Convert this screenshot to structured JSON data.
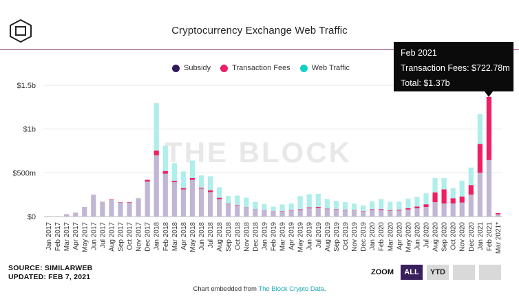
{
  "header": {
    "logo_icon": "the-block-cube-logo",
    "title": "Cryptocurrency Exchange Web Traffic"
  },
  "legend": [
    {
      "label": "Subsidy",
      "color": "#2e1a5c"
    },
    {
      "label": "Transaction Fees",
      "color": "#ee1f63"
    },
    {
      "label": "Web Traffic",
      "color": "#12cfc6"
    }
  ],
  "tooltip": {
    "title": "Feb 2021",
    "line1": "Transaction Fees: $722.78m",
    "line2": "Total: $1.37b"
  },
  "watermark": "THE BLOCK",
  "footer": {
    "source": "SOURCE: SIMILARWEB",
    "updated": "UPDATED: FEB 7, 2021",
    "embed_prefix": "Chart embedded from ",
    "embed_link": "The Block Crypto Data",
    "embed_suffix": "."
  },
  "zoom": {
    "label": "ZOOM",
    "buttons": [
      "ALL",
      "YTD",
      "",
      ""
    ],
    "active": "ALL"
  },
  "chart_data": {
    "type": "bar",
    "stacked": true,
    "title": "Cryptocurrency Exchange Web Traffic",
    "xlabel": "",
    "ylabel": "",
    "ylim": [
      0,
      1500
    ],
    "yticks": [
      {
        "value": 0,
        "label": "$0"
      },
      {
        "value": 500,
        "label": "$500m"
      },
      {
        "value": 1000,
        "label": "$1b"
      },
      {
        "value": 1500,
        "label": "$1.5b"
      }
    ],
    "grid": true,
    "legend_position": "top-center",
    "categories": [
      "Jan 2017",
      "Feb 2017",
      "Mar 2017",
      "Apr 2017",
      "May 2017",
      "Jun 2017",
      "Jul 2017",
      "Aug 2017",
      "Sep 2017",
      "Oct 2017",
      "Nov 2017",
      "Dec 2017",
      "Jan 2018",
      "Feb 2018",
      "Mar 2018",
      "Apr 2018",
      "May 2018",
      "Jun 2018",
      "Jul 2018",
      "Aug 2018",
      "Sep 2018",
      "Oct 2018",
      "Nov 2018",
      "Dec 2018",
      "Jan 2019",
      "Feb 2019",
      "Mar 2019",
      "Apr 2019",
      "May 2019",
      "Jun 2019",
      "Jul 2019",
      "Aug 2019",
      "Sep 2019",
      "Oct 2019",
      "Nov 2019",
      "Dec 2019",
      "Jan 2020",
      "Feb 2020",
      "Mar 2020",
      "Apr 2020",
      "May 2020",
      "Jun 2020",
      "Jul 2020",
      "Aug 2020",
      "Sep 2020",
      "Oct 2020",
      "Nov 2020",
      "Dec 2020",
      "Jan 2021",
      "Feb 2021",
      "Mar 2021*"
    ],
    "series": [
      {
        "name": "Subsidy",
        "color": "#2e1a5c",
        "values": [
          0,
          0,
          0,
          0,
          0,
          0,
          0,
          0,
          0,
          0,
          0,
          0,
          0,
          0,
          0,
          0,
          0,
          0,
          0,
          0,
          0,
          0,
          0,
          0,
          0,
          0,
          0,
          0,
          0,
          0,
          0,
          0,
          0,
          0,
          0,
          0,
          0,
          0,
          0,
          0,
          0,
          0,
          0,
          0,
          0,
          0,
          0,
          0,
          0,
          0,
          0
        ]
      },
      {
        "name": "Transaction Fees",
        "color": "#ee1f63",
        "values": [
          0,
          0,
          0,
          0,
          0,
          0,
          0,
          5,
          4,
          6,
          0,
          20,
          55,
          30,
          15,
          15,
          20,
          10,
          20,
          15,
          5,
          5,
          5,
          3,
          3,
          3,
          3,
          5,
          8,
          10,
          10,
          5,
          5,
          4,
          4,
          3,
          8,
          10,
          8,
          10,
          15,
          20,
          30,
          110,
          160,
          60,
          70,
          110,
          330,
          723,
          15
        ]
      },
      {
        "name": "Web Traffic",
        "color": "#c1b6d3",
        "values": [
          5,
          5,
          28,
          45,
          110,
          250,
          170,
          190,
          160,
          160,
          210,
          400,
          700,
          490,
          395,
          310,
          420,
          320,
          280,
          200,
          140,
          130,
          100,
          80,
          70,
          55,
          60,
          65,
          75,
          95,
          100,
          85,
          80,
          75,
          70,
          60,
          75,
          75,
          65,
          70,
          80,
          95,
          110,
          165,
          150,
          150,
          160,
          250,
          500,
          645,
          25
        ]
      },
      {
        "name": "Web Traffic (upper)",
        "color": "#aeeeeb",
        "values": [
          0,
          0,
          0,
          0,
          0,
          0,
          0,
          0,
          0,
          0,
          0,
          0,
          540,
          290,
          200,
          190,
          200,
          140,
          160,
          120,
          90,
          105,
          110,
          85,
          70,
          55,
          75,
          80,
          150,
          150,
          150,
          110,
          95,
          85,
          75,
          65,
          90,
          115,
          95,
          90,
          110,
          110,
          125,
          165,
          130,
          115,
          180,
          200,
          340,
          0,
          0
        ]
      }
    ]
  }
}
